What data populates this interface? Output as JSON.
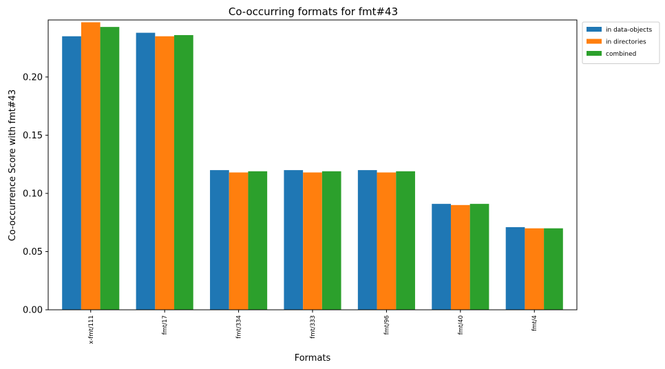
{
  "chart_data": {
    "type": "bar",
    "title": "Co-occurring formats for fmt#43",
    "xlabel": "Formats",
    "ylabel": "Co-occurrence Score with fmt#43",
    "categories": [
      "x-fmt/111",
      "fmt/17",
      "fmt/334",
      "fmt/333",
      "fmt/96",
      "fmt/40",
      "fmt/4"
    ],
    "series": [
      {
        "name": "in data-objects",
        "color": "#1f77b4",
        "values": [
          0.235,
          0.238,
          0.12,
          0.12,
          0.12,
          0.091,
          0.071
        ]
      },
      {
        "name": "in directories",
        "color": "#ff7f0e",
        "values": [
          0.247,
          0.235,
          0.118,
          0.118,
          0.118,
          0.09,
          0.07
        ]
      },
      {
        "name": "combined",
        "color": "#2ca02c",
        "values": [
          0.243,
          0.236,
          0.119,
          0.119,
          0.119,
          0.091,
          0.07
        ]
      }
    ],
    "ylim": [
      0,
      0.249
    ],
    "yticks": [
      0.0,
      0.05,
      0.1,
      0.15,
      0.2
    ],
    "ytick_labels": [
      "0.00",
      "0.05",
      "0.10",
      "0.15",
      "0.20"
    ],
    "grid": false,
    "legend_position": "outside-top-right"
  }
}
